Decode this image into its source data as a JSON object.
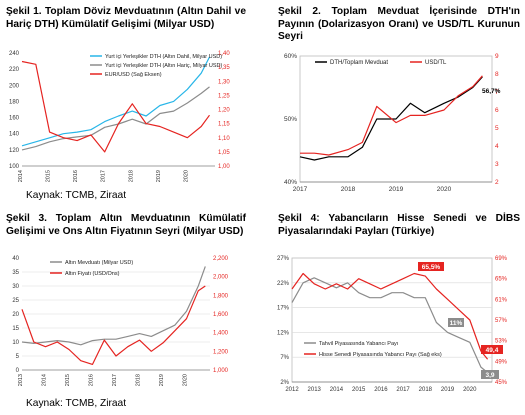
{
  "charts": {
    "c1": {
      "title": "Şekil 1. Toplam Döviz Mevduatının (Altın Dahil ve Hariç DTH) Kümülatif Gelişimi (Milyar USD)",
      "source": "Kaynak: TCMB, Ziraat",
      "legend": [
        "Yurt içi Yerleşikler DTH (Altın Dahil, Milyar USD)",
        "Yurt içi Yerleşikler DTH (Altın Hariç, Milyar USD)",
        "EUR/USD (Sağ Eksen)"
      ],
      "y_ticks": [
        "100",
        "120",
        "140",
        "160",
        "180",
        "200",
        "220",
        "240"
      ],
      "y2_ticks": [
        "1,00",
        "1,05",
        "1,10",
        "1,15",
        "1,20",
        "1,25",
        "1,30",
        "1,35",
        "1,40"
      ],
      "x_ticks": [
        "2014",
        "2015",
        "2016",
        "2017",
        "2018",
        "2019",
        "2020"
      ]
    },
    "c2": {
      "title": "Şekil 2. Toplam Mevduat İçerisinde DTH'ın Payının (Dolarizasyon Oranı) ve USD/TL Kurunun Seyri",
      "legend": [
        "DTH/Toplam Mevduat",
        "USD/TL"
      ],
      "y_ticks": [
        "40%",
        "50%",
        "60%"
      ],
      "y2_ticks": [
        "2",
        "3",
        "4",
        "5",
        "6",
        "7",
        "8",
        "9"
      ],
      "x_ticks": [
        "2017",
        "2018",
        "2019",
        "2020"
      ],
      "annotation": "56,7%"
    },
    "c3": {
      "title": "Şekil 3. Toplam Altın Mevduatının Kümülatif Gelişimi ve Ons Altın Fiyatının Seyri (Milyar USD)",
      "source": "Kaynak: TCMB, Ziraat",
      "legend": [
        "Altın Mevduatı (Milyar USD)",
        "Altın Fiyatı (USD/Ons)"
      ],
      "y_ticks": [
        "0",
        "5",
        "10",
        "15",
        "20",
        "25",
        "30",
        "35",
        "40"
      ],
      "y2_ticks": [
        "1,000",
        "1,200",
        "1,400",
        "1,600",
        "1,800",
        "2,000",
        "2,200"
      ],
      "x_ticks": [
        "2013",
        "2014",
        "2015",
        "2016",
        "2017",
        "2018",
        "2019",
        "2020"
      ]
    },
    "c4": {
      "title": "Şekil 4: Yabancıların Hisse Senedi ve DİBS Piyasalarındaki Payları (Türkiye)",
      "legend": [
        "Tahvil Piyasasında Yabancı Payı",
        "Hisse Senedi Piyasasında Yabancı Payı (Sağ eks)"
      ],
      "y_ticks": [
        "2%",
        "7%",
        "12%",
        "17%",
        "22%",
        "27%"
      ],
      "y2_ticks": [
        "45%",
        "49%",
        "53%",
        "57%",
        "61%",
        "65%",
        "69%"
      ],
      "x_ticks": [
        "2012",
        "2013",
        "2014",
        "2015",
        "2016",
        "2017",
        "2018",
        "2019",
        "2020"
      ],
      "badges": [
        "65,5%",
        "11%",
        "49,4",
        "3,9"
      ]
    }
  },
  "chart_data": [
    {
      "type": "line",
      "title": "Şekil 1. Toplam Döviz Mevduatının (Altın Dahil ve Hariç DTH) Kümülatif Gelişimi (Milyar USD)",
      "ylim": [
        100,
        240
      ],
      "y2lim": [
        1.0,
        1.4
      ],
      "x": [
        2014.0,
        2014.5,
        2015.0,
        2015.5,
        2016.0,
        2016.5,
        2017.0,
        2017.5,
        2018.0,
        2018.5,
        2019.0,
        2019.5,
        2020.0,
        2020.5,
        2020.8
      ],
      "series": [
        {
          "name": "Yurt içi Yerleşikler DTH (Altın Dahil, Milyar USD)",
          "color": "#29b6e8",
          "values": [
            125,
            130,
            135,
            140,
            142,
            145,
            155,
            162,
            168,
            162,
            175,
            180,
            195,
            215,
            235
          ]
        },
        {
          "name": "Yurt içi Yerleşikler DTH (Altın Hariç, Milyar USD)",
          "color": "#8c8c8c",
          "values": [
            120,
            124,
            130,
            134,
            136,
            138,
            148,
            152,
            158,
            152,
            165,
            168,
            178,
            190,
            198
          ]
        },
        {
          "name": "EUR/USD (Sağ Eksen)",
          "color": "#e52421",
          "axis": "right",
          "values": [
            1.37,
            1.36,
            1.12,
            1.1,
            1.09,
            1.11,
            1.05,
            1.15,
            1.22,
            1.15,
            1.14,
            1.12,
            1.1,
            1.14,
            1.18
          ]
        }
      ]
    },
    {
      "type": "line",
      "title": "Şekil 2. Toplam Mevduat İçerisinde DTH'ın Payının (Dolarizasyon Oranı) ve USD/TL Kurunun Seyri",
      "ylim": [
        40,
        60
      ],
      "y2lim": [
        2,
        9
      ],
      "x": [
        2017.0,
        2017.3,
        2017.6,
        2018.0,
        2018.3,
        2018.6,
        2019.0,
        2019.3,
        2019.6,
        2020.0,
        2020.3,
        2020.6,
        2020.8
      ],
      "series": [
        {
          "name": "DTH/Toplam Mevduat",
          "color": "#000000",
          "values": [
            44,
            43.5,
            44,
            44,
            45.5,
            50,
            50,
            52.5,
            51,
            52.5,
            53.5,
            55,
            56.7
          ]
        },
        {
          "name": "USD/TL",
          "color": "#e52421",
          "axis": "right",
          "values": [
            3.6,
            3.6,
            3.5,
            3.8,
            4.2,
            6.2,
            5.3,
            5.7,
            5.7,
            6.0,
            6.8,
            7.3,
            7.9
          ]
        }
      ],
      "annotations": [
        "56,7%"
      ]
    },
    {
      "type": "line",
      "title": "Şekil 3. Toplam Altın Mevduatının Kümülatif Gelişimi ve Ons Altın Fiyatının Seyri (Milyar USD)",
      "ylim": [
        0,
        40
      ],
      "y2lim": [
        1000,
        2200
      ],
      "x": [
        2013.0,
        2013.5,
        2014.0,
        2014.5,
        2015.0,
        2015.5,
        2016.0,
        2016.5,
        2017.0,
        2017.5,
        2018.0,
        2018.5,
        2019.0,
        2019.5,
        2020.0,
        2020.5,
        2020.8
      ],
      "series": [
        {
          "name": "Altın Mevduatı (Milyar USD)",
          "color": "#8c8c8c",
          "values": [
            10,
            9.5,
            10,
            10.5,
            10,
            9,
            10.5,
            11,
            11,
            12,
            13,
            12,
            14,
            16,
            21,
            30,
            37
          ]
        },
        {
          "name": "Altın Fiyatı (USD/Ons)",
          "color": "#e52421",
          "axis": "right",
          "values": [
            1650,
            1300,
            1250,
            1300,
            1220,
            1100,
            1060,
            1320,
            1150,
            1250,
            1320,
            1200,
            1290,
            1420,
            1550,
            1850,
            1900
          ]
        }
      ]
    },
    {
      "type": "line",
      "title": "Şekil 4: Yabancıların Hisse Senedi ve DİBS Piyasalarındaki Payları (Türkiye)",
      "ylim": [
        2,
        27
      ],
      "y2lim": [
        45,
        69
      ],
      "x": [
        2012.0,
        2012.5,
        2013.0,
        2013.5,
        2014.0,
        2014.5,
        2015.0,
        2015.5,
        2016.0,
        2016.5,
        2017.0,
        2017.5,
        2018.0,
        2018.5,
        2019.0,
        2019.5,
        2020.0,
        2020.5,
        2020.8
      ],
      "series": [
        {
          "name": "Tahvil Piyasasında Yabancı Payı",
          "color": "#8c8c8c",
          "values": [
            18,
            22,
            23,
            22,
            21,
            22,
            20,
            19,
            19,
            20,
            20,
            19,
            19,
            14,
            12,
            11,
            10,
            5,
            3.9
          ]
        },
        {
          "name": "Hisse Senedi Piyasasında Yabancı Payı (Sağ eks)",
          "color": "#e52421",
          "axis": "right",
          "values": [
            63,
            66,
            64,
            63,
            64,
            63,
            65,
            64,
            63,
            64,
            65,
            66,
            65.5,
            63,
            61,
            59,
            57,
            51,
            49.4
          ]
        }
      ],
      "annotations": [
        "65,5%",
        "11%",
        "49,4",
        "3,9"
      ]
    }
  ]
}
